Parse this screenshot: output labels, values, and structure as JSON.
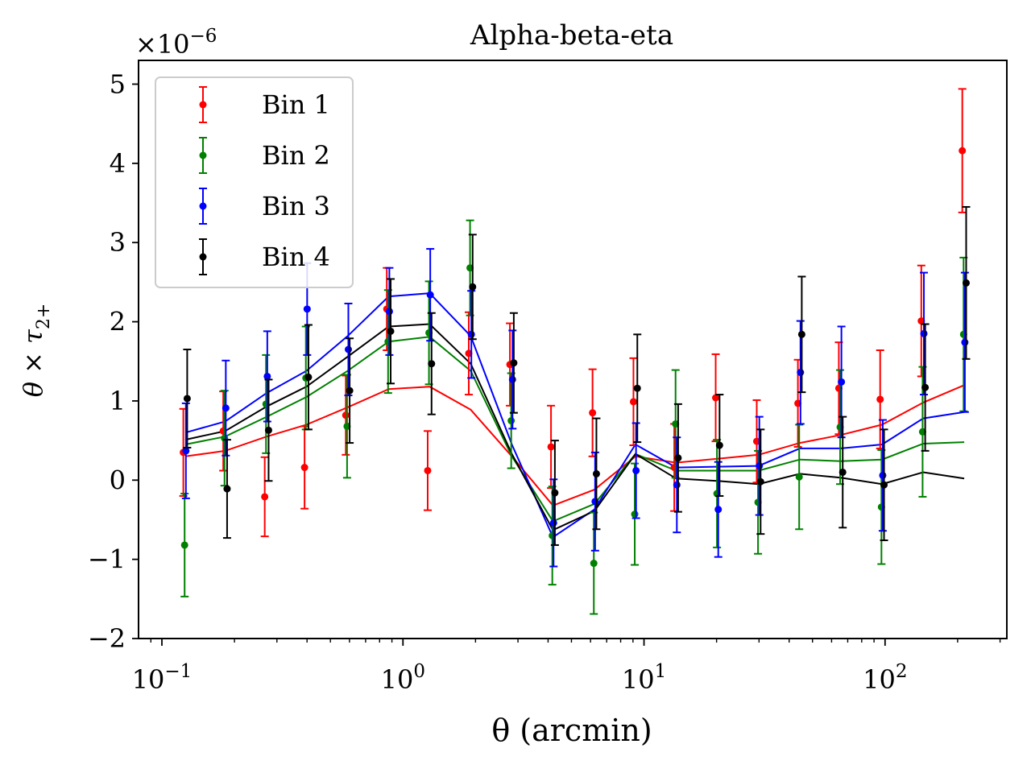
{
  "chart_data": {
    "type": "scatter",
    "title": "Alpha-beta-eta",
    "xlabel": "θ (arcmin)",
    "ylabel": "θ × τ",
    "ylabel_sub": "2+",
    "y_multiplier": "×10",
    "y_multiplier_exp": "−6",
    "xscale": "log",
    "xlim": [
      0.08,
      320
    ],
    "ylim": [
      -2.0,
      5.3
    ],
    "x_ticks": [
      {
        "value": 0.1,
        "base": "10",
        "exp": "−1"
      },
      {
        "value": 1,
        "base": "10",
        "exp": "0"
      },
      {
        "value": 10,
        "base": "10",
        "exp": "1"
      },
      {
        "value": 100,
        "base": "10",
        "exp": "2"
      }
    ],
    "y_ticks": [
      {
        "value": -2,
        "label": "−2"
      },
      {
        "value": -1,
        "label": "−1"
      },
      {
        "value": 0,
        "label": "0"
      },
      {
        "value": 1,
        "label": "1"
      },
      {
        "value": 2,
        "label": "2"
      },
      {
        "value": 3,
        "label": "3"
      },
      {
        "value": 4,
        "label": "4"
      },
      {
        "value": 5,
        "label": "5"
      }
    ],
    "legend_position": "top-left",
    "grid": false,
    "x": [
      0.125,
      0.183,
      0.272,
      0.398,
      0.59,
      0.873,
      1.29,
      1.91,
      2.83,
      4.19,
      6.23,
      9.21,
      13.6,
      20.2,
      29.9,
      44.3,
      65.5,
      97.2,
      144,
      213
    ],
    "series": [
      {
        "name": "Bin 1",
        "color": "#ff0000",
        "points": [
          0.35,
          0.62,
          -0.21,
          0.16,
          0.82,
          2.16,
          0.12,
          1.6,
          1.46,
          0.42,
          0.85,
          0.99,
          0.16,
          1.04,
          0.49,
          0.97,
          1.16,
          1.02,
          2.01,
          4.16
        ],
        "errors": [
          0.55,
          0.5,
          0.5,
          0.52,
          0.5,
          0.52,
          0.5,
          0.52,
          0.52,
          0.52,
          0.55,
          0.55,
          0.55,
          0.55,
          0.52,
          0.55,
          0.58,
          0.62,
          0.7,
          0.78
        ],
        "model": [
          0.3,
          0.37,
          0.55,
          0.7,
          0.92,
          1.15,
          1.18,
          0.89,
          0.3,
          -0.32,
          -0.12,
          0.3,
          0.22,
          0.27,
          0.32,
          0.47,
          0.57,
          0.7,
          0.98,
          1.2
        ]
      },
      {
        "name": "Bin 2",
        "color": "#008000",
        "points": [
          -0.82,
          0.53,
          0.96,
          1.29,
          0.68,
          1.75,
          1.86,
          2.68,
          0.75,
          -0.7,
          -1.05,
          -0.43,
          0.71,
          -0.17,
          -0.28,
          0.04,
          0.67,
          -0.34,
          0.61,
          1.84
        ],
        "errors": [
          0.65,
          0.6,
          0.62,
          0.65,
          0.65,
          0.65,
          0.65,
          0.6,
          0.6,
          0.62,
          0.64,
          0.64,
          0.68,
          0.68,
          0.65,
          0.66,
          0.72,
          0.72,
          0.82,
          0.97
        ],
        "model": [
          0.45,
          0.55,
          0.8,
          1.05,
          1.38,
          1.75,
          1.81,
          1.38,
          0.3,
          -0.52,
          -0.3,
          0.33,
          0.12,
          0.12,
          0.12,
          0.26,
          0.24,
          0.26,
          0.46,
          0.48
        ]
      },
      {
        "name": "Bin 3",
        "color": "#0000ff",
        "points": [
          0.37,
          0.91,
          1.31,
          2.16,
          1.65,
          2.13,
          2.34,
          1.84,
          1.27,
          -0.54,
          -0.27,
          0.12,
          -0.06,
          -0.37,
          0.18,
          1.36,
          1.24,
          0.06,
          1.85,
          1.74
        ],
        "errors": [
          0.6,
          0.6,
          0.57,
          0.58,
          0.58,
          0.55,
          0.58,
          0.55,
          0.62,
          0.55,
          0.62,
          0.6,
          0.6,
          0.6,
          0.62,
          0.65,
          0.7,
          0.7,
          0.77,
          0.88
        ],
        "model": [
          0.6,
          0.74,
          1.1,
          1.38,
          1.82,
          2.32,
          2.36,
          1.82,
          0.45,
          -0.72,
          -0.37,
          0.45,
          0.16,
          0.17,
          0.18,
          0.4,
          0.4,
          0.45,
          0.78,
          0.86
        ]
      },
      {
        "name": "Bin 4",
        "color": "#000000",
        "points": [
          1.03,
          -0.11,
          0.63,
          1.3,
          1.13,
          1.88,
          1.47,
          2.44,
          1.48,
          -0.16,
          0.08,
          1.16,
          0.28,
          0.44,
          -0.02,
          1.84,
          0.1,
          -0.06,
          1.17,
          2.49
        ],
        "errors": [
          0.62,
          0.62,
          0.64,
          0.66,
          0.66,
          0.66,
          0.64,
          0.66,
          0.63,
          0.66,
          0.7,
          0.68,
          0.68,
          0.64,
          0.66,
          0.73,
          0.7,
          0.7,
          0.8,
          0.96
        ],
        "model": [
          0.51,
          0.62,
          0.93,
          1.18,
          1.56,
          1.94,
          1.97,
          1.47,
          0.33,
          -0.63,
          -0.39,
          0.33,
          0.02,
          -0.01,
          -0.05,
          0.08,
          0.03,
          -0.05,
          0.1,
          0.02
        ]
      }
    ]
  }
}
